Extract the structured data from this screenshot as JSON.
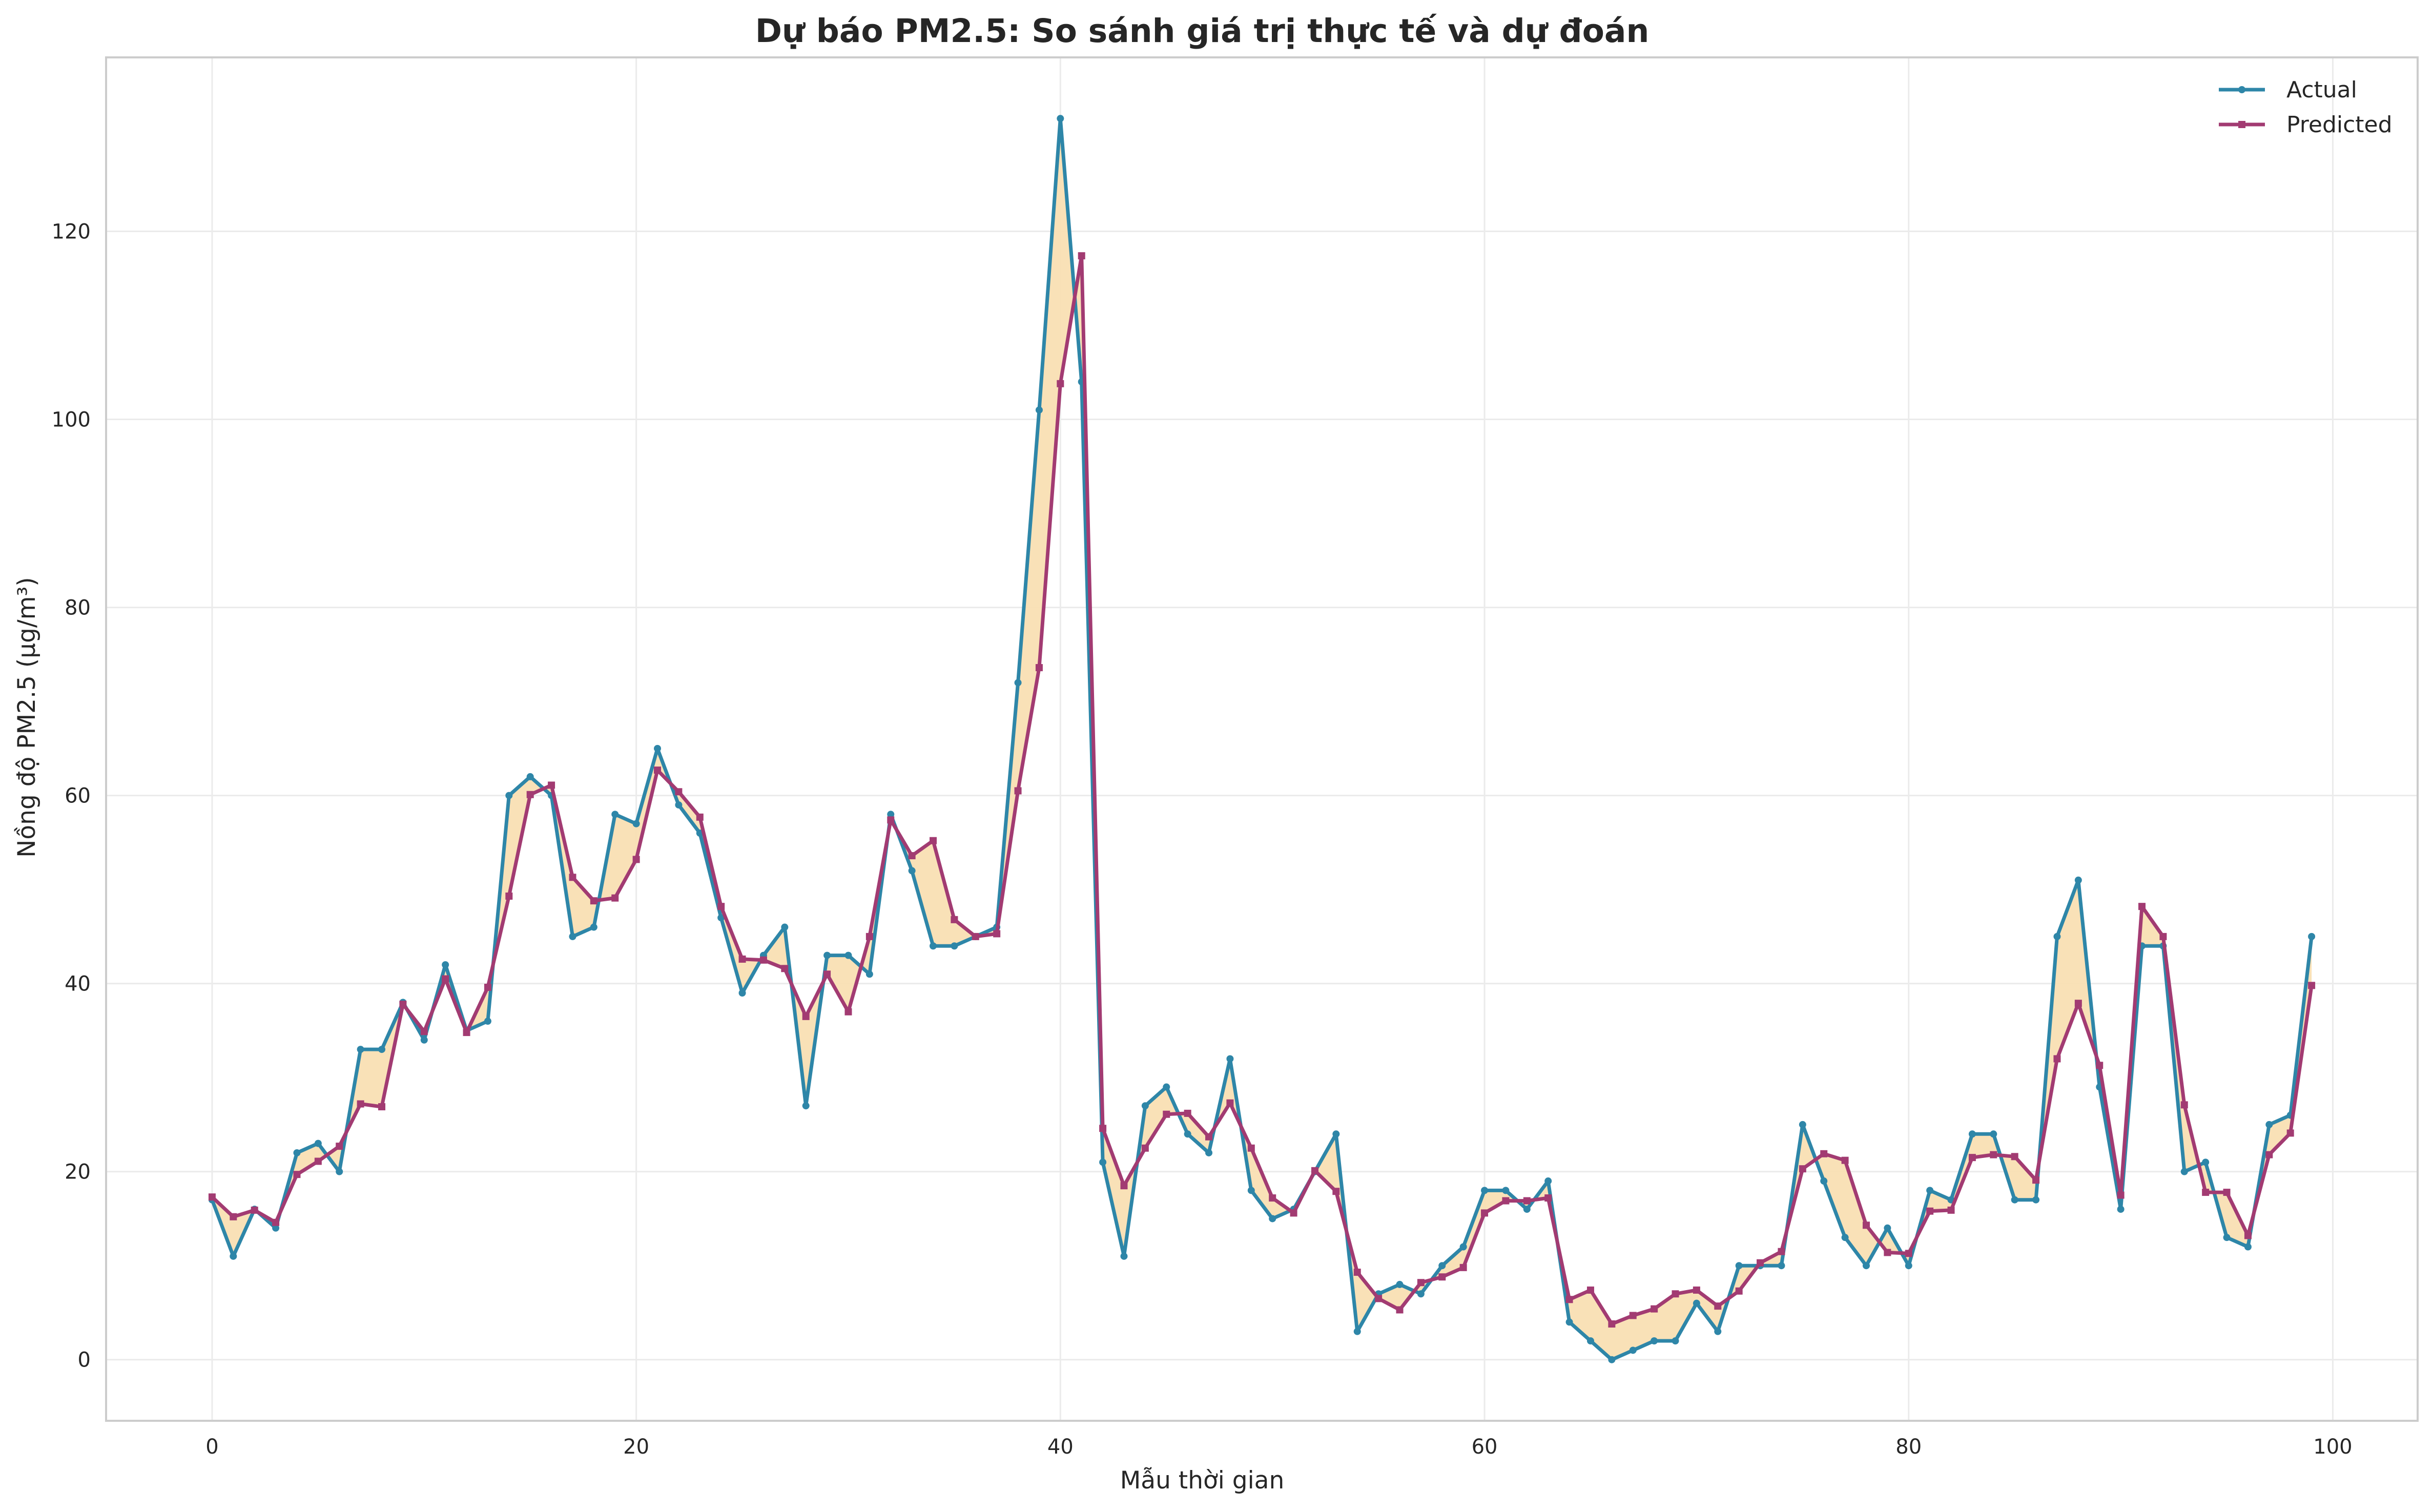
{
  "chart_data": {
    "type": "line",
    "title": "Dự báo PM2.5: So sánh giá trị thực tế và dự đoán",
    "xlabel": "Mẫu thời gian",
    "ylabel": "Nồng độ PM2.5 (μg/m³)",
    "xlim": [
      -5,
      104
    ],
    "ylim": [
      -6.5,
      138.5
    ],
    "xticks": [
      0,
      20,
      40,
      60,
      80,
      100
    ],
    "yticks": [
      0,
      20,
      40,
      60,
      80,
      100,
      120
    ],
    "grid": true,
    "legend_position": "top-right",
    "fill_between": {
      "color": "#f9dfb3",
      "description": "area between Actual and Predicted"
    },
    "x": [
      0,
      1,
      2,
      3,
      4,
      5,
      6,
      7,
      8,
      9,
      10,
      11,
      12,
      13,
      14,
      15,
      16,
      17,
      18,
      19,
      20,
      21,
      22,
      23,
      24,
      25,
      26,
      27,
      28,
      29,
      30,
      31,
      32,
      33,
      34,
      35,
      36,
      37,
      38,
      39,
      40,
      41,
      42,
      43,
      44,
      45,
      46,
      47,
      48,
      49,
      50,
      51,
      52,
      53,
      54,
      55,
      56,
      57,
      58,
      59,
      60,
      61,
      62,
      63,
      64,
      65,
      66,
      67,
      68,
      69,
      70,
      71,
      72,
      73,
      74,
      75,
      76,
      77,
      78,
      79,
      80,
      81,
      82,
      83,
      84,
      85,
      86,
      87,
      88,
      89,
      90,
      91,
      92,
      93,
      94,
      95,
      96,
      97,
      98,
      99
    ],
    "series": [
      {
        "name": "Actual",
        "color": "#2e86a8",
        "marker": "circle",
        "values": [
          17,
          11,
          16,
          14,
          22,
          23,
          20,
          33,
          33,
          38,
          34,
          42,
          35,
          36,
          60,
          62,
          60,
          45,
          46,
          58,
          57,
          65,
          59,
          56,
          47,
          39,
          43,
          46,
          27,
          43,
          43,
          41,
          58,
          52,
          44,
          44,
          45,
          46,
          72,
          101,
          132,
          104,
          21,
          11,
          27,
          29,
          24,
          22,
          32,
          18,
          15,
          16,
          20,
          24,
          3,
          7,
          8,
          7,
          10,
          12,
          18,
          18,
          16,
          19,
          4,
          2,
          0,
          1,
          2,
          2,
          6,
          3,
          10,
          10,
          10,
          25,
          19,
          13,
          10,
          14,
          10,
          18,
          17,
          24,
          24,
          17,
          17,
          45,
          51,
          29,
          16,
          44,
          44,
          20,
          21,
          13,
          12,
          25,
          26,
          45
        ]
      },
      {
        "name": "Predicted",
        "color": "#a23b72",
        "marker": "square",
        "values": [
          17.3,
          15.2,
          15.9,
          14.6,
          19.7,
          21.1,
          22.7,
          27.2,
          26.9,
          37.8,
          34.9,
          40.5,
          34.8,
          39.6,
          49.3,
          60.1,
          61.1,
          51.3,
          48.8,
          49.1,
          53.2,
          62.7,
          60.4,
          57.7,
          48.2,
          42.6,
          42.5,
          41.6,
          36.5,
          41,
          37,
          45,
          57.4,
          53.6,
          55.2,
          46.8,
          45,
          45.3,
          60.5,
          73.6,
          103.8,
          117.4,
          24.6,
          18.5,
          22.5,
          26.1,
          26.2,
          23.7,
          27.3,
          22.5,
          17.2,
          15.6,
          20.1,
          17.9,
          9.3,
          6.5,
          5.3,
          8.2,
          8.8,
          9.8,
          15.6,
          16.9,
          16.9,
          17.2,
          6.4,
          7.4,
          3.8,
          4.7,
          5.4,
          7,
          7.4,
          5.7,
          7.3,
          10.3,
          11.5,
          20.3,
          21.9,
          21.2,
          14.3,
          11.4,
          11.3,
          15.8,
          15.9,
          21.5,
          21.8,
          21.6,
          19.1,
          32,
          37.9,
          31.3,
          17.5,
          48.2,
          45,
          27.1,
          17.8,
          17.8,
          13.2,
          21.8,
          24.1,
          39.8
        ]
      }
    ]
  }
}
